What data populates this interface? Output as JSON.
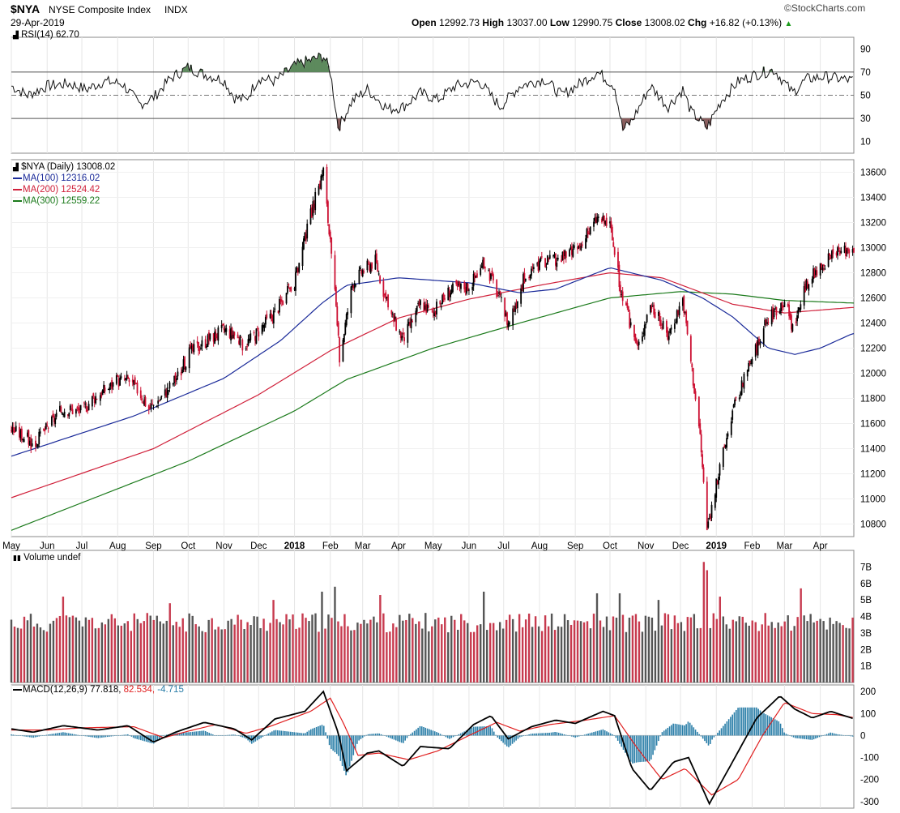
{
  "header": {
    "symbol": "$NYA",
    "name": "NYSE Composite Index",
    "exchange": "INDX",
    "date": "29-Apr-2019",
    "brand": "©StockCharts.com",
    "open_label": "Open",
    "open": "12992.73",
    "high_label": "High",
    "high": "13037.00",
    "low_label": "Low",
    "low": "12990.75",
    "close_label": "Close",
    "close": "13008.02",
    "chg_label": "Chg",
    "chg": "+16.82 (+0.13%)",
    "chg_arrow": "▲"
  },
  "colors": {
    "up": "#000000",
    "down": "#cc1133",
    "ma100": "#1a2a99",
    "ma200": "#d0203a",
    "ma300": "#1b7a1b",
    "rsi_overbought": "#5d8a5d",
    "rsi_oversold": "#8a5d5d",
    "vol_up": "#555555",
    "vol_down": "#c73a4e",
    "macd": "#000000",
    "signal": "#e02020",
    "hist": "#2a7ea8",
    "chg_up": "#1a9a1a"
  },
  "rsi_panel": {
    "legend": "RSI(14) 62.70",
    "icon": "candle-icon"
  },
  "price_panel": {
    "legend": "$NYA (Daily) 13008.02",
    "ma100": "MA(100) 12316.02",
    "ma200": "MA(200) 12524.42",
    "ma300": "MA(300) 12559.22",
    "icon": "candlestick-icon"
  },
  "volume_panel": {
    "legend": "Volume undef",
    "icon": "bar-icon"
  },
  "macd_panel": {
    "legend_a": "MACD(12,26,9) 77.818,",
    "legend_b": "82.534,",
    "legend_c": "-4.715"
  },
  "chart_data": {
    "type": "candlestick",
    "title": "$NYA NYSE Composite Index INDX",
    "x_tick_labels": [
      "May",
      "Jun",
      "Jul",
      "Aug",
      "Sep",
      "Oct",
      "Nov",
      "Dec",
      "2018",
      "Feb",
      "Mar",
      "Apr",
      "May",
      "Jun",
      "Jul",
      "Aug",
      "Sep",
      "Oct",
      "Nov",
      "Dec",
      "2019",
      "Feb",
      "Mar",
      "Apr"
    ],
    "price": {
      "ylim": [
        10700,
        13700
      ],
      "y_ticks": [
        10800,
        11000,
        11200,
        11400,
        11600,
        11800,
        12000,
        12200,
        12400,
        12600,
        12800,
        13000,
        13200,
        13400,
        13600
      ],
      "close_path": [
        [
          "2017-05-01",
          11560
        ],
        [
          "2017-05-15",
          11480
        ],
        [
          "2017-05-20",
          11420
        ],
        [
          "2017-06-01",
          11570
        ],
        [
          "2017-06-15",
          11720
        ],
        [
          "2017-07-01",
          11700
        ],
        [
          "2017-07-10",
          11800
        ],
        [
          "2017-08-01",
          11940
        ],
        [
          "2017-08-10",
          11950
        ],
        [
          "2017-08-20",
          11850
        ],
        [
          "2017-08-28",
          11720
        ],
        [
          "2017-09-10",
          11830
        ],
        [
          "2017-09-25",
          12020
        ],
        [
          "2017-10-01",
          12150
        ],
        [
          "2017-10-15",
          12250
        ],
        [
          "2017-11-01",
          12350
        ],
        [
          "2017-11-10",
          12310
        ],
        [
          "2017-11-18",
          12220
        ],
        [
          "2017-12-01",
          12340
        ],
        [
          "2017-12-15",
          12490
        ],
        [
          "2018-01-01",
          12720
        ],
        [
          "2018-01-15",
          13260
        ],
        [
          "2018-01-26",
          13620
        ],
        [
          "2018-02-05",
          12620
        ],
        [
          "2018-02-09",
          12120
        ],
        [
          "2018-02-20",
          12720
        ],
        [
          "2018-03-01",
          12820
        ],
        [
          "2018-03-12",
          12900
        ],
        [
          "2018-03-23",
          12520
        ],
        [
          "2018-04-05",
          12270
        ],
        [
          "2018-04-20",
          12560
        ],
        [
          "2018-05-01",
          12480
        ],
        [
          "2018-05-15",
          12660
        ],
        [
          "2018-06-01",
          12700
        ],
        [
          "2018-06-15",
          12880
        ],
        [
          "2018-06-28",
          12580
        ],
        [
          "2018-07-05",
          12400
        ],
        [
          "2018-07-18",
          12740
        ],
        [
          "2018-08-01",
          12870
        ],
        [
          "2018-08-15",
          12900
        ],
        [
          "2018-08-25",
          12940
        ],
        [
          "2018-09-05",
          13000
        ],
        [
          "2018-09-20",
          13240
        ],
        [
          "2018-10-01",
          13180
        ],
        [
          "2018-10-11",
          12620
        ],
        [
          "2018-10-25",
          12200
        ],
        [
          "2018-11-05",
          12560
        ],
        [
          "2018-11-20",
          12300
        ],
        [
          "2018-12-03",
          12600
        ],
        [
          "2018-12-10",
          12100
        ],
        [
          "2018-12-18",
          11500
        ],
        [
          "2018-12-24",
          10760
        ],
        [
          "2019-01-03",
          11200
        ],
        [
          "2019-01-15",
          11700
        ],
        [
          "2019-02-01",
          12120
        ],
        [
          "2019-02-15",
          12440
        ],
        [
          "2019-03-01",
          12590
        ],
        [
          "2019-03-08",
          12360
        ],
        [
          "2019-03-20",
          12700
        ],
        [
          "2019-04-01",
          12860
        ],
        [
          "2019-04-15",
          12950
        ],
        [
          "2019-04-29",
          13008
        ]
      ],
      "ma100_path": [
        [
          "2017-05-01",
          11340
        ],
        [
          "2017-08-15",
          11660
        ],
        [
          "2017-11-01",
          11960
        ],
        [
          "2017-12-20",
          12260
        ],
        [
          "2018-01-25",
          12560
        ],
        [
          "2018-02-15",
          12700
        ],
        [
          "2018-04-01",
          12760
        ],
        [
          "2018-06-01",
          12720
        ],
        [
          "2018-07-15",
          12640
        ],
        [
          "2018-08-15",
          12670
        ],
        [
          "2018-10-01",
          12840
        ],
        [
          "2018-11-15",
          12740
        ],
        [
          "2018-12-20",
          12600
        ],
        [
          "2019-01-15",
          12450
        ],
        [
          "2019-02-15",
          12200
        ],
        [
          "2019-03-10",
          12150
        ],
        [
          "2019-04-01",
          12200
        ],
        [
          "2019-04-29",
          12316
        ]
      ],
      "ma200_path": [
        [
          "2017-05-01",
          11010
        ],
        [
          "2017-09-01",
          11400
        ],
        [
          "2017-12-01",
          11830
        ],
        [
          "2018-02-01",
          12180
        ],
        [
          "2018-04-01",
          12440
        ],
        [
          "2018-06-01",
          12590
        ],
        [
          "2018-08-01",
          12700
        ],
        [
          "2018-10-01",
          12800
        ],
        [
          "2018-11-15",
          12760
        ],
        [
          "2019-01-15",
          12550
        ],
        [
          "2019-03-01",
          12480
        ],
        [
          "2019-04-29",
          12524
        ]
      ],
      "ma300_path": [
        [
          "2017-05-01",
          10750
        ],
        [
          "2017-10-01",
          11300
        ],
        [
          "2018-01-01",
          11700
        ],
        [
          "2018-02-15",
          11950
        ],
        [
          "2018-05-01",
          12200
        ],
        [
          "2018-07-15",
          12400
        ],
        [
          "2018-10-01",
          12600
        ],
        [
          "2018-12-01",
          12650
        ],
        [
          "2019-01-15",
          12630
        ],
        [
          "2019-03-01",
          12580
        ],
        [
          "2019-04-29",
          12559
        ]
      ]
    },
    "rsi": {
      "period": 14,
      "last": 62.7,
      "ylim": [
        0,
        100
      ],
      "y_ticks": [
        10,
        30,
        50,
        70,
        90
      ],
      "overbought": 70,
      "oversold": 30,
      "path": [
        [
          "2017-05-01",
          58
        ],
        [
          "2017-05-15",
          50
        ],
        [
          "2017-06-01",
          58
        ],
        [
          "2017-06-20",
          60
        ],
        [
          "2017-07-05",
          55
        ],
        [
          "2017-07-20",
          62
        ],
        [
          "2017-08-05",
          60
        ],
        [
          "2017-08-20",
          42
        ],
        [
          "2017-09-01",
          48
        ],
        [
          "2017-09-15",
          64
        ],
        [
          "2017-10-01",
          74
        ],
        [
          "2017-10-15",
          68
        ],
        [
          "2017-11-01",
          63
        ],
        [
          "2017-11-10",
          48
        ],
        [
          "2017-11-20",
          46
        ],
        [
          "2017-12-01",
          65
        ],
        [
          "2017-12-15",
          62
        ],
        [
          "2018-01-02",
          76
        ],
        [
          "2018-01-15",
          80
        ],
        [
          "2018-01-26",
          84
        ],
        [
          "2018-02-01",
          70
        ],
        [
          "2018-02-08",
          22
        ],
        [
          "2018-02-20",
          45
        ],
        [
          "2018-03-05",
          55
        ],
        [
          "2018-03-23",
          38
        ],
        [
          "2018-04-05",
          40
        ],
        [
          "2018-04-20",
          52
        ],
        [
          "2018-05-05",
          46
        ],
        [
          "2018-05-20",
          58
        ],
        [
          "2018-06-10",
          62
        ],
        [
          "2018-06-28",
          40
        ],
        [
          "2018-07-15",
          58
        ],
        [
          "2018-08-05",
          64
        ],
        [
          "2018-08-20",
          50
        ],
        [
          "2018-09-05",
          60
        ],
        [
          "2018-09-20",
          70
        ],
        [
          "2018-10-05",
          58
        ],
        [
          "2018-10-12",
          20
        ],
        [
          "2018-10-20",
          28
        ],
        [
          "2018-11-05",
          58
        ],
        [
          "2018-11-20",
          40
        ],
        [
          "2018-12-03",
          55
        ],
        [
          "2018-12-10",
          36
        ],
        [
          "2018-12-24",
          22
        ],
        [
          "2019-01-05",
          45
        ],
        [
          "2019-01-20",
          62
        ],
        [
          "2019-02-05",
          68
        ],
        [
          "2019-02-20",
          72
        ],
        [
          "2019-03-08",
          52
        ],
        [
          "2019-03-20",
          64
        ],
        [
          "2019-04-05",
          66
        ],
        [
          "2019-04-29",
          62.7
        ]
      ]
    },
    "volume": {
      "ylim": [
        0,
        8000000000
      ],
      "y_ticks": [
        "1B",
        "2B",
        "3B",
        "4B",
        "5B",
        "6B",
        "7B"
      ],
      "y_tick_values": [
        1000000000,
        2000000000,
        3000000000,
        4000000000,
        5000000000,
        6000000000,
        7000000000
      ],
      "typical": 3700000000,
      "spikes": [
        [
          "2017-06-16",
          5200000000
        ],
        [
          "2017-09-15",
          4800000000
        ],
        [
          "2017-12-15",
          5000000000
        ],
        [
          "2018-01-26",
          5500000000
        ],
        [
          "2018-02-06",
          5800000000
        ],
        [
          "2018-03-16",
          5300000000
        ],
        [
          "2018-06-15",
          5500000000
        ],
        [
          "2018-09-21",
          5400000000
        ],
        [
          "2018-10-10",
          5400000000
        ],
        [
          "2018-11-12",
          5000000000
        ],
        [
          "2018-12-21",
          7300000000
        ],
        [
          "2018-12-24",
          6800000000
        ],
        [
          "2019-01-04",
          5200000000
        ],
        [
          "2019-03-15",
          5700000000
        ]
      ]
    },
    "macd": {
      "params": [
        12,
        26,
        9
      ],
      "macd": 77.818,
      "signal": 82.534,
      "histogram": -4.715,
      "ylim": [
        -330,
        230
      ],
      "y_ticks": [
        200,
        100,
        0,
        -100,
        -200,
        -300
      ],
      "macd_path": [
        [
          "2017-05-01",
          30
        ],
        [
          "2017-05-20",
          15
        ],
        [
          "2017-06-15",
          45
        ],
        [
          "2017-07-15",
          25
        ],
        [
          "2017-08-10",
          45
        ],
        [
          "2017-09-01",
          -30
        ],
        [
          "2017-09-20",
          15
        ],
        [
          "2017-10-15",
          60
        ],
        [
          "2017-11-10",
          30
        ],
        [
          "2017-11-25",
          -20
        ],
        [
          "2017-12-15",
          75
        ],
        [
          "2018-01-10",
          110
        ],
        [
          "2018-01-26",
          200
        ],
        [
          "2018-02-08",
          10
        ],
        [
          "2018-02-15",
          -160
        ],
        [
          "2018-03-05",
          -80
        ],
        [
          "2018-03-15",
          -70
        ],
        [
          "2018-04-05",
          -140
        ],
        [
          "2018-04-20",
          -50
        ],
        [
          "2018-05-15",
          -60
        ],
        [
          "2018-06-05",
          50
        ],
        [
          "2018-06-20",
          90
        ],
        [
          "2018-07-05",
          -15
        ],
        [
          "2018-07-25",
          40
        ],
        [
          "2018-08-15",
          70
        ],
        [
          "2018-09-01",
          55
        ],
        [
          "2018-09-25",
          110
        ],
        [
          "2018-10-05",
          90
        ],
        [
          "2018-10-20",
          -150
        ],
        [
          "2018-11-05",
          -250
        ],
        [
          "2018-11-25",
          -120
        ],
        [
          "2018-12-08",
          -100
        ],
        [
          "2018-12-26",
          -310
        ],
        [
          "2019-01-15",
          -120
        ],
        [
          "2019-02-05",
          80
        ],
        [
          "2019-02-25",
          180
        ],
        [
          "2019-03-10",
          120
        ],
        [
          "2019-03-25",
          80
        ],
        [
          "2019-04-10",
          110
        ],
        [
          "2019-04-29",
          78
        ]
      ],
      "signal_path": [
        [
          "2017-05-01",
          25
        ],
        [
          "2017-06-01",
          25
        ],
        [
          "2017-07-01",
          35
        ],
        [
          "2017-08-15",
          40
        ],
        [
          "2017-09-10",
          -10
        ],
        [
          "2017-10-01",
          20
        ],
        [
          "2017-10-25",
          50
        ],
        [
          "2017-11-20",
          10
        ],
        [
          "2017-12-10",
          40
        ],
        [
          "2018-01-15",
          110
        ],
        [
          "2018-02-01",
          170
        ],
        [
          "2018-02-12",
          60
        ],
        [
          "2018-02-25",
          -90
        ],
        [
          "2018-03-15",
          -80
        ],
        [
          "2018-04-10",
          -110
        ],
        [
          "2018-05-05",
          -70
        ],
        [
          "2018-06-01",
          0
        ],
        [
          "2018-06-25",
          60
        ],
        [
          "2018-07-15",
          20
        ],
        [
          "2018-08-10",
          50
        ],
        [
          "2018-09-10",
          70
        ],
        [
          "2018-10-05",
          90
        ],
        [
          "2018-10-25",
          -60
        ],
        [
          "2018-11-15",
          -200
        ],
        [
          "2018-12-05",
          -150
        ],
        [
          "2018-12-28",
          -270
        ],
        [
          "2019-01-20",
          -200
        ],
        [
          "2019-02-10",
          0
        ],
        [
          "2019-03-01",
          150
        ],
        [
          "2019-03-25",
          100
        ],
        [
          "2019-04-15",
          95
        ],
        [
          "2019-04-29",
          82.5
        ]
      ]
    }
  }
}
